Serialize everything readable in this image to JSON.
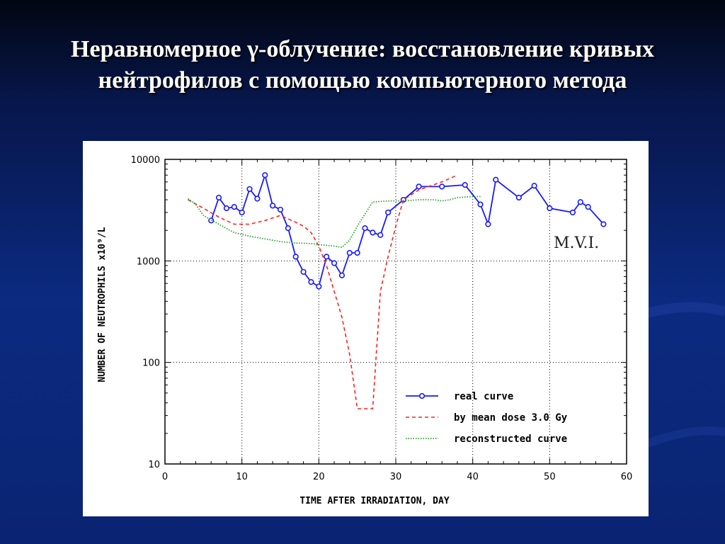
{
  "slide": {
    "title_line1": "Неравномерное γ-облучение: восстановление кривых",
    "title_line2": "нейтрофилов с помощью компьютерного метода"
  },
  "chart_data": {
    "type": "line",
    "xlabel": "TIME AFTER IRRADIATION, DAY",
    "ylabel": "NUMBER OF NEUTROPHILS x10⁹/L",
    "xlim": [
      0,
      60
    ],
    "ylim": [
      10,
      10000
    ],
    "yscale": "log",
    "xticks": [
      0,
      10,
      20,
      30,
      40,
      50,
      60
    ],
    "yticks": [
      10,
      100,
      1000,
      10000
    ],
    "grid": true,
    "legend_position": "bottom-right",
    "annotation": "M.V.I.",
    "series": [
      {
        "name": "real curve",
        "style": "solid-markers",
        "color": "#1a1aff",
        "points": [
          [
            6,
            2500
          ],
          [
            7,
            4200
          ],
          [
            8,
            3300
          ],
          [
            9,
            3400
          ],
          [
            10,
            3000
          ],
          [
            11,
            5100
          ],
          [
            12,
            4100
          ],
          [
            13,
            7000
          ],
          [
            14,
            3500
          ],
          [
            15,
            3200
          ],
          [
            16,
            2100
          ],
          [
            17,
            1100
          ],
          [
            18,
            780
          ],
          [
            19,
            620
          ],
          [
            20,
            560
          ],
          [
            21,
            1100
          ],
          [
            22,
            950
          ],
          [
            23,
            720
          ],
          [
            24,
            1200
          ],
          [
            25,
            1200
          ],
          [
            26,
            2100
          ],
          [
            27,
            1900
          ],
          [
            28,
            1800
          ],
          [
            29,
            3000
          ],
          [
            31,
            4000
          ],
          [
            33,
            5400
          ],
          [
            36,
            5400
          ],
          [
            39,
            5600
          ],
          [
            41,
            3600
          ],
          [
            42,
            2300
          ],
          [
            43,
            6300
          ],
          [
            46,
            4200
          ],
          [
            48,
            5500
          ],
          [
            50,
            3300
          ],
          [
            53,
            3000
          ],
          [
            54,
            3800
          ],
          [
            55,
            3400
          ],
          [
            57,
            2300
          ]
        ]
      },
      {
        "name": "by mean dose 3.0 Gy",
        "style": "dashed",
        "color": "#ff2020",
        "points": [
          [
            3,
            4000
          ],
          [
            5,
            3300
          ],
          [
            7,
            2700
          ],
          [
            9,
            2300
          ],
          [
            11,
            2300
          ],
          [
            13,
            2500
          ],
          [
            15,
            2800
          ],
          [
            16,
            2600
          ],
          [
            17,
            2400
          ],
          [
            18,
            2200
          ],
          [
            19,
            1900
          ],
          [
            20,
            1400
          ],
          [
            21,
            900
          ],
          [
            22,
            500
          ],
          [
            23,
            280
          ],
          [
            24,
            120
          ],
          [
            25,
            35
          ],
          [
            27,
            35
          ],
          [
            28,
            500
          ],
          [
            29,
            1100
          ],
          [
            30,
            2200
          ],
          [
            31,
            4000
          ],
          [
            33,
            5000
          ],
          [
            36,
            6000
          ],
          [
            38,
            7000
          ]
        ]
      },
      {
        "name": "reconstructed curve",
        "style": "dotted",
        "color": "#2aa02a",
        "points": [
          [
            3,
            4100
          ],
          [
            4,
            3600
          ],
          [
            5,
            2800
          ],
          [
            7,
            2300
          ],
          [
            9,
            1900
          ],
          [
            11,
            1750
          ],
          [
            13,
            1650
          ],
          [
            15,
            1550
          ],
          [
            17,
            1500
          ],
          [
            19,
            1480
          ],
          [
            21,
            1420
          ],
          [
            22,
            1400
          ],
          [
            23,
            1360
          ],
          [
            24,
            1600
          ],
          [
            25,
            2200
          ],
          [
            26,
            2900
          ],
          [
            27,
            3800
          ],
          [
            29,
            3900
          ],
          [
            31,
            3900
          ],
          [
            33,
            4000
          ],
          [
            35,
            4000
          ],
          [
            36,
            3900
          ],
          [
            37,
            4000
          ],
          [
            38,
            4200
          ],
          [
            40,
            4300
          ],
          [
            41,
            4300
          ]
        ]
      }
    ]
  }
}
